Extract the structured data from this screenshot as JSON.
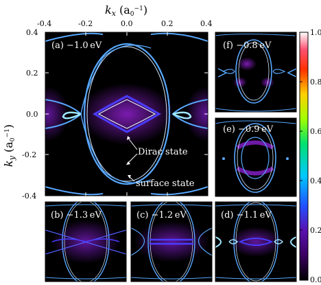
{
  "figure": {
    "x_axis_title": "k_x (a0^-1)",
    "y_axis_title": "k_y (a0^-1)",
    "x_ticks": [
      "-0.4",
      "-0.2",
      "0.0",
      "0.2",
      "0.4"
    ],
    "y_ticks": [
      "0.4",
      "0.2",
      "0.0",
      "-0.2",
      "-0.4"
    ],
    "colorbar_ticks": [
      "1.0",
      "0.8",
      "0.6",
      "0.4",
      "0.2",
      "0.0"
    ],
    "colors": {
      "background": "#000000",
      "band_outer": "#58a8ff",
      "band_inner": "#e0f0ff",
      "glow": "#7a1fbf",
      "dirac": "#4a3cff"
    }
  },
  "panels": {
    "a": {
      "label": "(a) −1.0 eV"
    },
    "b": {
      "label": "(b) −1.3 eV"
    },
    "c": {
      "label": "(c) −1.2 eV"
    },
    "d": {
      "label": "(d) −1.1 eV"
    },
    "e": {
      "label": "(e) −0.9 eV"
    },
    "f": {
      "label": "(f) −0.8 eV"
    }
  },
  "annotations": {
    "dirac": "Dirac state",
    "surface": "surface state"
  },
  "chart_data": {
    "type": "heatmap",
    "xlabel": "k_x (a0^-1)",
    "ylabel": "k_y (a0^-1)",
    "xlim": [
      -0.4,
      0.4
    ],
    "ylim": [
      -0.4,
      0.4
    ],
    "colorbar": {
      "min": 0.0,
      "max": 1.0,
      "ticks": [
        0.0,
        0.2,
        0.4,
        0.6,
        0.8,
        1.0
      ]
    },
    "panels": [
      "(a) −1.0 eV",
      "(b) −1.3 eV",
      "(c) −1.2 eV",
      "(d) −1.1 eV",
      "(e) −0.9 eV",
      "(f) −0.8 eV"
    ]
  }
}
